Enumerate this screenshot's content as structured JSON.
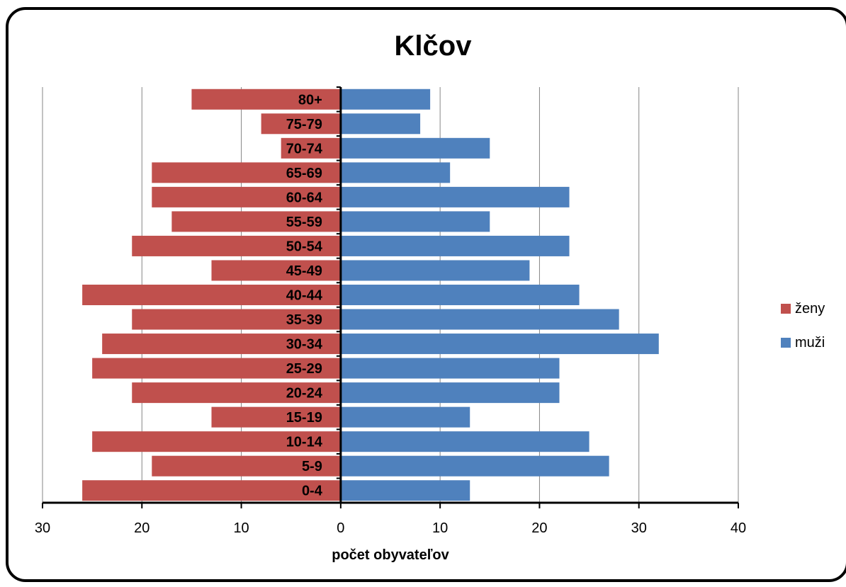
{
  "chart_data": {
    "type": "bar",
    "orientation": "horizontal",
    "title": "Klčov",
    "xlabel": "počet obyvateľov",
    "ylabel": "",
    "xlim": [
      -30,
      40
    ],
    "xticks": [
      -30,
      -20,
      -10,
      0,
      10,
      20,
      30,
      40
    ],
    "xtick_labels": [
      "30",
      "20",
      "10",
      "0",
      "10",
      "20",
      "30",
      "40"
    ],
    "grid": true,
    "legend_position": "right",
    "categories": [
      "0-4",
      "5-9",
      "10-14",
      "15-19",
      "20-24",
      "25-29",
      "30-34",
      "35-39",
      "40-44",
      "45-49",
      "50-54",
      "55-59",
      "60-64",
      "65-69",
      "70-74",
      "75-79",
      "80+"
    ],
    "series": [
      {
        "name": "ženy",
        "color": "#c0504d",
        "direction": "left",
        "values": [
          26,
          19,
          25,
          13,
          21,
          25,
          24,
          21,
          26,
          13,
          21,
          17,
          19,
          19,
          6,
          8,
          15
        ]
      },
      {
        "name": "muži",
        "color": "#4f81bd",
        "direction": "right",
        "values": [
          13,
          27,
          25,
          13,
          22,
          22,
          32,
          28,
          24,
          19,
          23,
          15,
          23,
          11,
          15,
          8,
          9
        ]
      }
    ]
  }
}
